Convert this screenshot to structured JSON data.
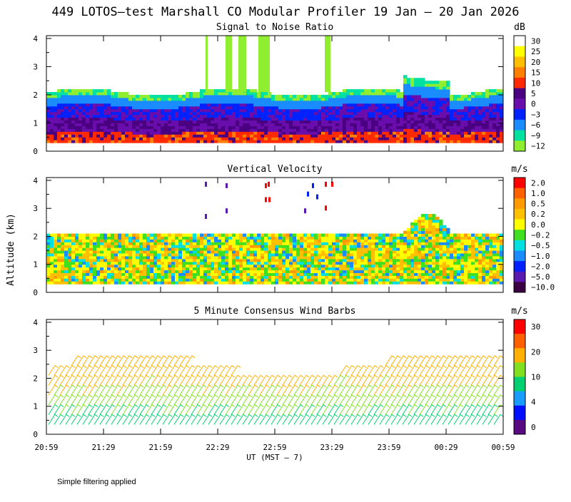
{
  "title": "449 LOTOS—test Marshall CO Modular Profiler 19 Jan — 20 Jan 2026",
  "footer_note": "Simple filtering applied",
  "y_axis_label": "Altitude (km)",
  "x_axis_label": "UT  (MST — 7)",
  "chart_data": [
    {
      "type": "heatmap",
      "title": "Signal to Noise Ratio",
      "unit": "dB",
      "x_ticks": [
        "20:59",
        "21:29",
        "21:59",
        "22:29",
        "22:59",
        "23:29",
        "23:59",
        "00:29",
        "00:59"
      ],
      "y_ticks": [
        "0",
        "1",
        "2",
        "3",
        "4"
      ],
      "ylim": [
        0,
        4.1
      ],
      "colorbar": {
        "labels": [
          "30",
          "25",
          "20",
          "15",
          "10",
          "5",
          "0",
          "−3",
          "−6",
          "−9",
          "−12"
        ],
        "colors": [
          "#ffffff",
          "#ffff00",
          "#ffbf00",
          "#ff8000",
          "#ff2a00",
          "#4b0082",
          "#6a0dad",
          "#0022ff",
          "#1a8cff",
          "#00e0a0",
          "#90ee30"
        ]
      }
    },
    {
      "type": "heatmap",
      "title": "Vertical Velocity",
      "unit": "m/s",
      "x_ticks": [
        "20:59",
        "21:29",
        "21:59",
        "22:29",
        "22:59",
        "23:29",
        "23:59",
        "00:29",
        "00:59"
      ],
      "y_ticks": [
        "0",
        "1",
        "2",
        "3",
        "4"
      ],
      "ylim": [
        0,
        4.1
      ],
      "colorbar": {
        "labels": [
          "2.0",
          "1.0",
          "0.5",
          "0.2",
          "0.0",
          "−0.2",
          "−0.5",
          "−1.0",
          "−2.0",
          "−5.0",
          "−10.0"
        ],
        "colors": [
          "#ff0000",
          "#ff6000",
          "#ff9a00",
          "#ffc000",
          "#ffff00",
          "#40e020",
          "#00e0e0",
          "#1a8cff",
          "#0020ff",
          "#5a1ab0",
          "#3a0040"
        ]
      }
    },
    {
      "type": "scatter",
      "title": "5 Minute Consensus Wind Barbs",
      "unit": "m/s",
      "x_ticks": [
        "20:59",
        "21:29",
        "21:59",
        "22:29",
        "22:59",
        "23:29",
        "23:59",
        "00:29",
        "00:59"
      ],
      "y_ticks": [
        "0",
        "1",
        "2",
        "3",
        "4"
      ],
      "ylim": [
        0,
        4.1
      ],
      "colorbar": {
        "labels": [
          "30",
          "20",
          "10",
          "4",
          "0"
        ],
        "colors": [
          "#ff0000",
          "#ff6000",
          "#ffb000",
          "#80e020",
          "#00d070",
          "#1a9cff",
          "#0010ff",
          "#5a0a80"
        ]
      }
    }
  ]
}
